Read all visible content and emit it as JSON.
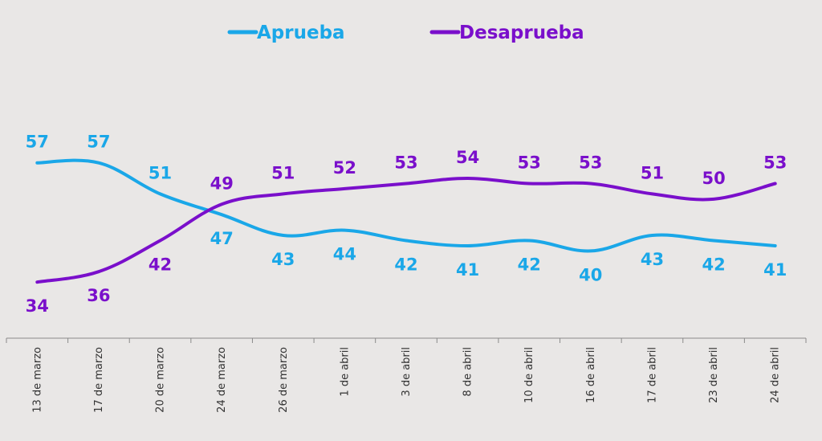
{
  "chart_data": {
    "type": "line",
    "categories": [
      "13 de marzo",
      "17 de marzo",
      "20 de marzo",
      "24 de marzo",
      "26 de marzo",
      "1 de abril",
      "3 de abril",
      "8 de abril",
      "10 de abril",
      "16 de abril",
      "17 de abril",
      "23 de abril",
      "24 de abril"
    ],
    "series": [
      {
        "name": "Aprueba",
        "color": "#1aa7e8",
        "values": [
          57,
          57,
          51,
          47,
          43,
          44,
          42,
          41,
          42,
          40,
          43,
          42,
          41
        ]
      },
      {
        "name": "Desaprueba",
        "color": "#7a0fcb",
        "values": [
          34,
          36,
          42,
          49,
          51,
          52,
          53,
          54,
          53,
          53,
          51,
          50,
          53
        ]
      }
    ],
    "legend_position": "top-center",
    "grid": false,
    "title": "",
    "xlabel": "",
    "ylabel": ""
  }
}
